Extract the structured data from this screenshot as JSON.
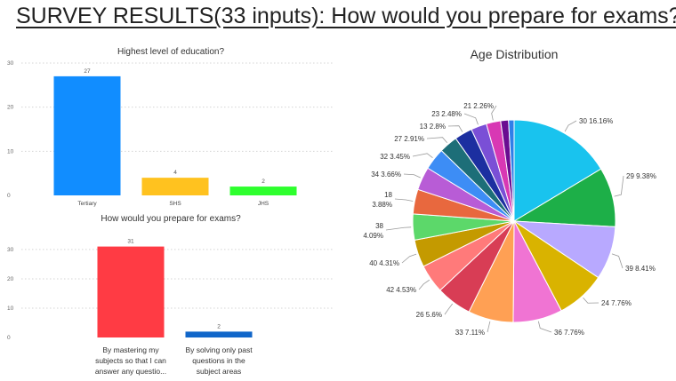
{
  "header": {
    "title": "SURVEY RESULTS(33 inputs): How would you prepare for exams? "
  },
  "chart_data": [
    {
      "type": "bar",
      "title": "Highest level of education?",
      "categories": [
        "Tertiary",
        "SHS",
        "JHS"
      ],
      "values": [
        27,
        4,
        2
      ],
      "colors": [
        "#118DFF",
        "#FFC21F",
        "#2EFF2E"
      ],
      "yticks": [
        0,
        10,
        20,
        30
      ],
      "ylim": [
        0,
        30
      ],
      "grid": true
    },
    {
      "type": "bar",
      "title": "How would you prepare for exams?",
      "categories": [
        [
          "By mastering my",
          "subjects so that I can",
          "answer any questio..."
        ],
        [
          "By solving only past",
          "questions in the",
          "subject areas"
        ]
      ],
      "values": [
        31,
        2
      ],
      "colors": [
        "#FF3B44",
        "#1166C9"
      ],
      "yticks": [
        0,
        10,
        20,
        30
      ],
      "ylim": [
        0,
        33
      ],
      "grid": true
    },
    {
      "type": "pie",
      "title": "Age Distribution",
      "slices": [
        {
          "label": "30",
          "pct": "16.16%",
          "value": 16.16,
          "color": "#19C3EE"
        },
        {
          "label": "29",
          "pct": "9.38%",
          "value": 9.38,
          "color": "#1DAF48"
        },
        {
          "label": "39",
          "pct": "8.41%",
          "value": 8.41,
          "color": "#B8A9FF"
        },
        {
          "label": "24",
          "pct": "7.76%",
          "value": 7.76,
          "color": "#D9B300"
        },
        {
          "label": "36",
          "pct": "7.76%",
          "value": 7.76,
          "color": "#F074D3"
        },
        {
          "label": "33",
          "pct": "7.11%",
          "value": 7.11,
          "color": "#FFA054"
        },
        {
          "label": "26",
          "pct": "5.6%",
          "value": 5.6,
          "color": "#D83D55"
        },
        {
          "label": "42",
          "pct": "4.53%",
          "value": 4.53,
          "color": "#FF7A7A"
        },
        {
          "label": "40",
          "pct": "4.31%",
          "value": 4.31,
          "color": "#C49A00"
        },
        {
          "label": "38",
          "pct": "4.09%",
          "value": 4.09,
          "color": "#5CD86A"
        },
        {
          "label": "18",
          "pct": "3.88%",
          "value": 3.88,
          "color": "#E8683E"
        },
        {
          "label": "34",
          "pct": "3.66%",
          "value": 3.66,
          "color": "#B85CD6"
        },
        {
          "label": "32",
          "pct": "3.45%",
          "value": 3.45,
          "color": "#3D8DF5"
        },
        {
          "label": "27",
          "pct": "2.91%",
          "value": 2.91,
          "color": "#1D6E78"
        },
        {
          "label": "13",
          "pct": "2.8%",
          "value": 2.8,
          "color": "#1C2FA0"
        },
        {
          "label": "23",
          "pct": "2.48%",
          "value": 2.48,
          "color": "#7A4FD6"
        },
        {
          "label": "21",
          "pct": "2.26%",
          "value": 2.26,
          "color": "#D838B4"
        },
        {
          "label": "",
          "pct": "",
          "value": 1.23,
          "color": "#6A0D91"
        },
        {
          "label": "",
          "pct": "",
          "value": 0.87,
          "color": "#2F7FE8"
        }
      ]
    }
  ]
}
